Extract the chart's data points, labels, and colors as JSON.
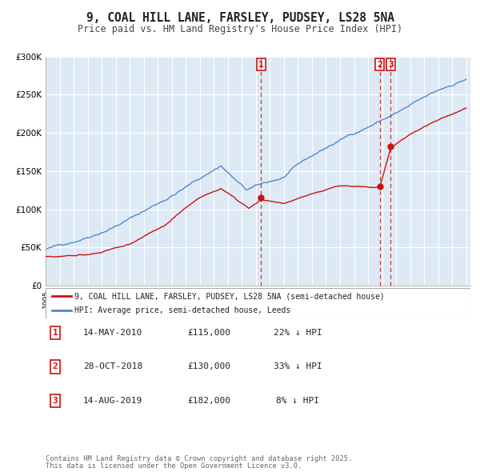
{
  "title": "9, COAL HILL LANE, FARSLEY, PUDSEY, LS28 5NA",
  "subtitle": "Price paid vs. HM Land Registry's House Price Index (HPI)",
  "title_fontsize": 10.5,
  "subtitle_fontsize": 8.5,
  "background_color": "#ffffff",
  "plot_bg_color": "#ddeaf5",
  "grid_color": "#ffffff",
  "hpi_color": "#5588cc",
  "price_color": "#cc1111",
  "ylim": [
    0,
    300000
  ],
  "yticks": [
    0,
    50000,
    100000,
    150000,
    200000,
    250000,
    300000
  ],
  "ytick_labels": [
    "£0",
    "£50K",
    "£100K",
    "£150K",
    "£200K",
    "£250K",
    "£300K"
  ],
  "legend_price_label": "9, COAL HILL LANE, FARSLEY, PUDSEY, LS28 5NA (semi-detached house)",
  "legend_hpi_label": "HPI: Average price, semi-detached house, Leeds",
  "transaction_labels": [
    "1",
    "2",
    "3"
  ],
  "transaction_dates": [
    2010.37,
    2018.83,
    2019.62
  ],
  "transaction_prices": [
    115000,
    130000,
    182000
  ],
  "transaction_date_strings": [
    "14-MAY-2010",
    "28-OCT-2018",
    "14-AUG-2019"
  ],
  "transaction_pct": [
    "22%",
    "33%",
    "8%"
  ],
  "footer_line1": "Contains HM Land Registry data © Crown copyright and database right 2025.",
  "footer_line2": "This data is licensed under the Open Government Licence v3.0."
}
